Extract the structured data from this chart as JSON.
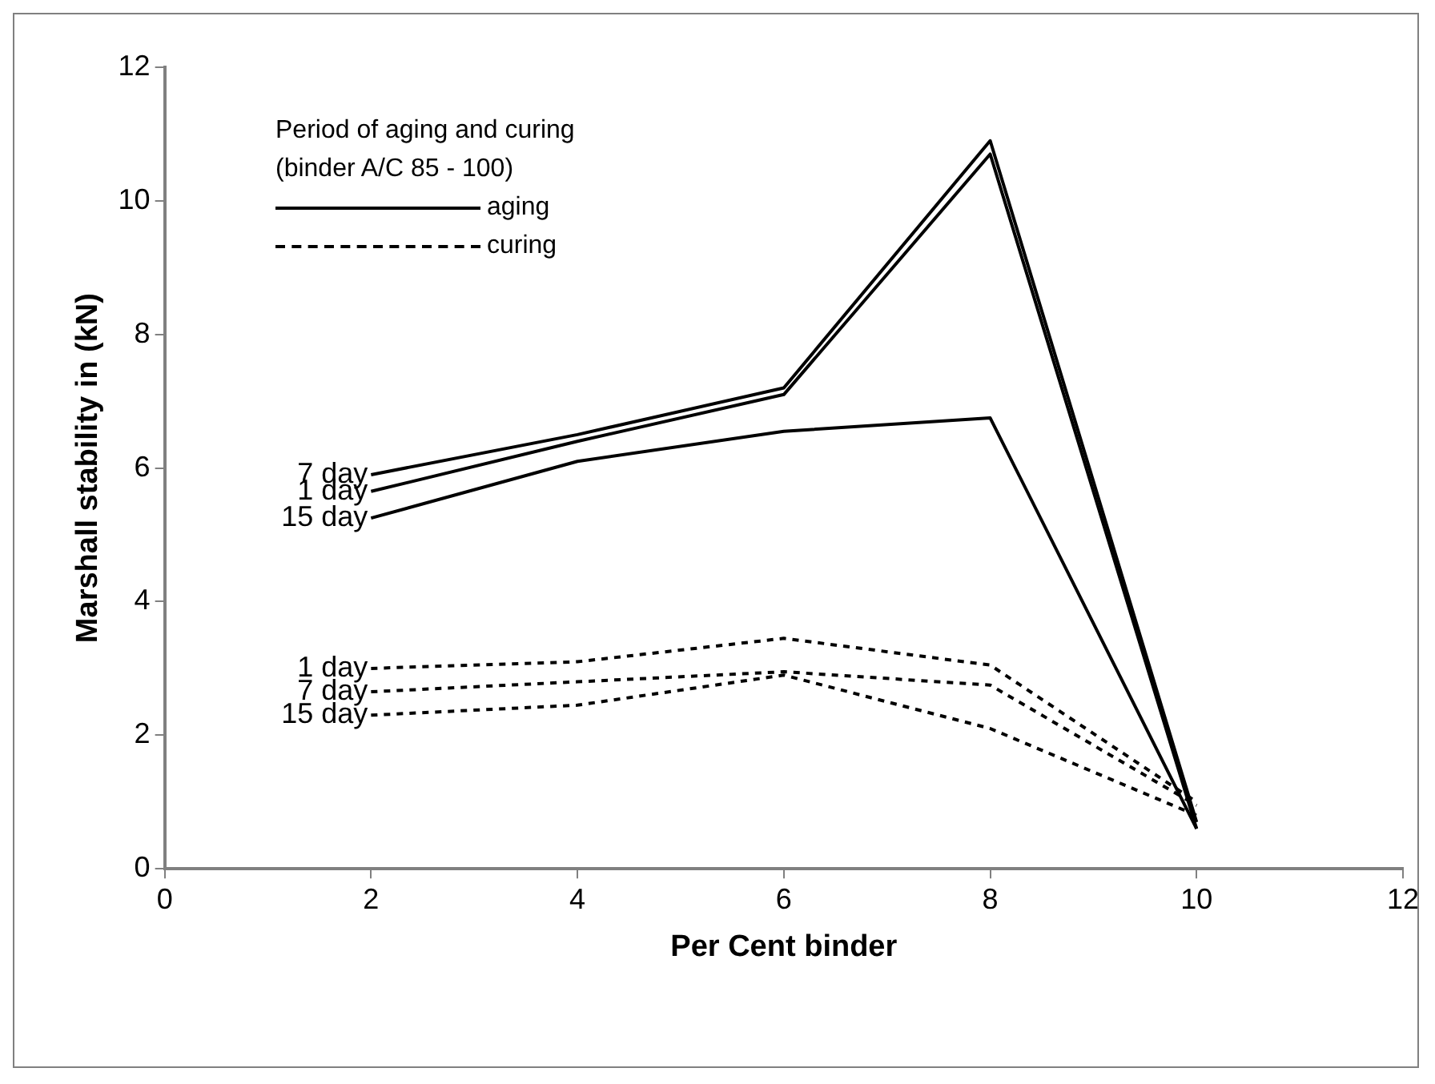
{
  "chart_data": {
    "type": "line",
    "xlabel": "Per Cent binder",
    "ylabel": "Marshall stability in (kN)",
    "legend_title": "Period of aging and curing (binder A/C 85 - 100)",
    "annotations": [
      "aging",
      "curing"
    ],
    "x": [
      2,
      4,
      6,
      8,
      10
    ],
    "xlim": [
      0,
      12
    ],
    "xticks": [
      0,
      2,
      4,
      6,
      8,
      10,
      12
    ],
    "ylim": [
      0,
      12
    ],
    "yticks": [
      0,
      2,
      4,
      6,
      8,
      10,
      12
    ],
    "grid": false,
    "marker": "none",
    "series": [
      {
        "name": "7 day",
        "color": "#000000",
        "line_style": "solid",
        "values": [
          5.9,
          6.5,
          7.2,
          10.9,
          0.7
        ]
      },
      {
        "name": "1 day",
        "color": "#000000",
        "line_style": "solid",
        "values": [
          5.65,
          6.4,
          7.1,
          10.7,
          0.6
        ]
      },
      {
        "name": "15 day",
        "color": "#000000",
        "line_style": "solid",
        "values": [
          5.25,
          6.1,
          6.55,
          6.75,
          0.6
        ]
      },
      {
        "name": "1 day",
        "color": "#000000",
        "line_style": "dashed",
        "values": [
          3.0,
          3.1,
          3.45,
          3.05,
          1.0
        ]
      },
      {
        "name": "7 day",
        "color": "#000000",
        "line_style": "dashed",
        "values": [
          2.65,
          2.8,
          2.95,
          2.75,
          0.95
        ]
      },
      {
        "name": "15 day",
        "color": "#000000",
        "line_style": "dashed",
        "values": [
          2.3,
          2.45,
          2.9,
          2.1,
          0.8
        ]
      }
    ]
  }
}
